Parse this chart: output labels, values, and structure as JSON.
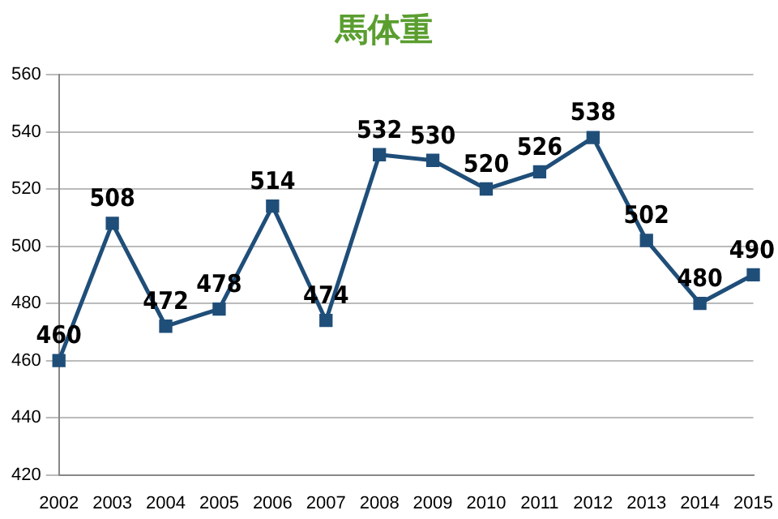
{
  "chart_data": {
    "type": "line",
    "title": "馬体重",
    "categories": [
      "2002",
      "2003",
      "2004",
      "2005",
      "2006",
      "2007",
      "2008",
      "2009",
      "2010",
      "2011",
      "2012",
      "2013",
      "2014",
      "2015"
    ],
    "series": [
      {
        "color": "#1f4e79",
        "values": [
          460,
          508,
          472,
          478,
          514,
          474,
          532,
          530,
          520,
          526,
          538,
          502,
          480,
          490
        ]
      }
    ],
    "ylim": [
      420,
      560
    ],
    "yticks": [
      420,
      440,
      460,
      480,
      500,
      520,
      540,
      560
    ],
    "grid": "y",
    "legend": false,
    "marker": "square",
    "line_style": "solid",
    "data_labels": true
  }
}
